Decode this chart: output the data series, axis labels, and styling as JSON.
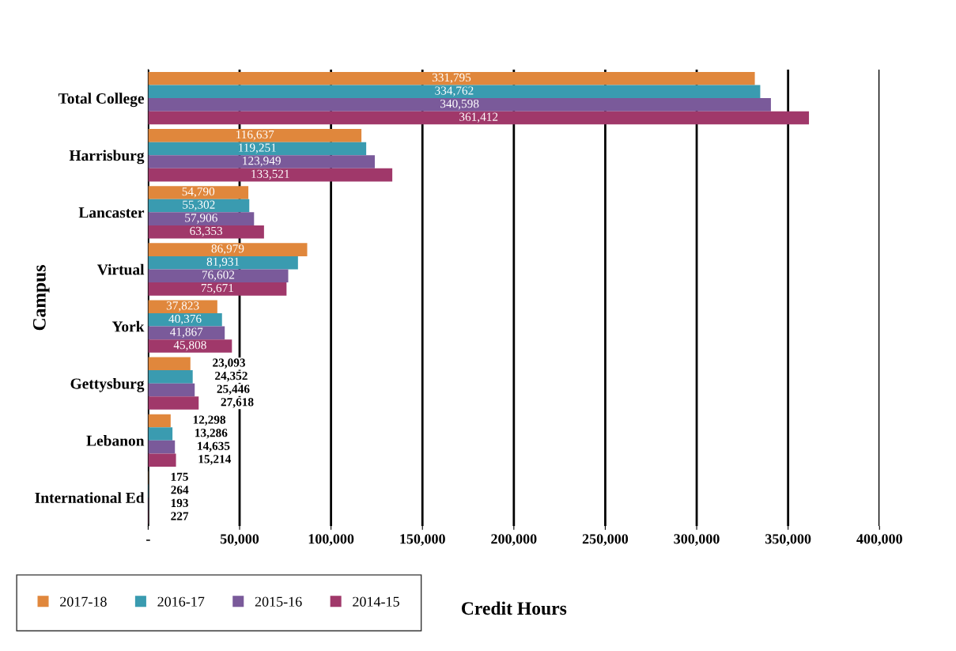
{
  "chart_data": {
    "type": "bar",
    "orientation": "horizontal",
    "xlabel": "Credit Hours",
    "ylabel": "Campus",
    "categories": [
      "Total College",
      "Harrisburg",
      "Lancaster",
      "Virtual",
      "York",
      "Gettysburg",
      "Lebanon",
      "International Ed"
    ],
    "series": [
      {
        "name": "2017-18",
        "color": "#e0873c",
        "values": [
          331795,
          116637,
          54790,
          86979,
          37823,
          23093,
          12298,
          175
        ],
        "value_labels": [
          "331,795",
          "116,637",
          "54,790",
          "86,979",
          "37,823",
          "23,093",
          "12,298",
          "175"
        ]
      },
      {
        "name": "2016-17",
        "color": "#3a9bb0",
        "values": [
          334762,
          119251,
          55302,
          81931,
          40376,
          24352,
          13286,
          264
        ],
        "value_labels": [
          "334,762",
          "119,251",
          "55,302",
          "81,931",
          "40,376",
          "24,352",
          "13,286",
          "264"
        ]
      },
      {
        "name": "2015-16",
        "color": "#7a5a9a",
        "values": [
          340598,
          123949,
          57906,
          76602,
          41867,
          25446,
          14635,
          193
        ],
        "value_labels": [
          "340,598",
          "123,949",
          "57,906",
          "76,602",
          "41,867",
          "25,446",
          "14,635",
          "193"
        ]
      },
      {
        "name": "2014-15",
        "color": "#a0386a",
        "values": [
          361412,
          133521,
          63353,
          75671,
          45808,
          27618,
          15214,
          227
        ],
        "value_labels": [
          "361,412",
          "133,521",
          "63,353",
          "75,671",
          "45,808",
          "27,618",
          "15,214",
          "227"
        ]
      }
    ],
    "xlim": [
      0,
      400000
    ],
    "xticks": [
      {
        "value": 0,
        "label": "-"
      },
      {
        "value": 50000,
        "label": "50,000"
      },
      {
        "value": 100000,
        "label": "100,000"
      },
      {
        "value": 150000,
        "label": "150,000"
      },
      {
        "value": 200000,
        "label": "200,000"
      },
      {
        "value": 250000,
        "label": "250,000"
      },
      {
        "value": 300000,
        "label": "300,000"
      },
      {
        "value": 350000,
        "label": "350,000"
      },
      {
        "value": 400000,
        "label": "400,000"
      }
    ],
    "grid": "x",
    "legend": "bottom left"
  }
}
